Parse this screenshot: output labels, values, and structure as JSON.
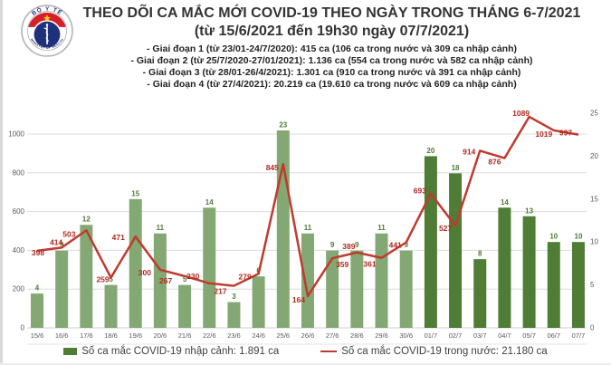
{
  "header": {
    "title_line1": "THEO DÕI CA MẮC MỚI COVID-19 THEO NGÀY TRONG THÁNG 6-7/2021",
    "title_line2": "(từ 15/6/2021 đến 19h30 ngày 07/7/2021)",
    "bullets": [
      "- Giai đoạn 1 (từ 23/01-24/7/2020): 415 ca (106 ca trong nước và 309 ca nhập cảnh)",
      "- Giai đoạn 2 (từ 25/7/2020-27/01/2021): 1.136 ca (554 ca trong nước và 582 ca nhập cảnh)",
      "- Giai đoạn 3 (từ 28/01-26/4/2021): 1.301 ca (910 ca trong nước và 391 ca nhập cảnh)",
      "- Giai đoạn 4 (từ 27/4/2021): 20.219 ca (19.610 ca trong nước và 609 ca nhập cảnh)"
    ]
  },
  "logo": {
    "top_text": "BỘ Y TẾ",
    "bottom_text": "MINISTRY OF HEALTH"
  },
  "legend": {
    "bars_label": "Số ca mắc COVID-19 nhập cảnh: 1.891 ca",
    "line_label": "Số ca mắc COVID-19 trong nước: 21.180 ca"
  },
  "chart_data": {
    "type": "bar",
    "subtype": "combo-bar-line-dual-axis",
    "categories": [
      "15/6",
      "16/6",
      "17/6",
      "18/6",
      "19/6",
      "20/6",
      "21/6",
      "22/6",
      "23/6",
      "24/6",
      "25/6",
      "26/6",
      "27/6",
      "28/6",
      "29/6",
      "30/6",
      "01/7",
      "02/7",
      "03/7",
      "04/7",
      "05/7",
      "06/7",
      "07/7"
    ],
    "series": [
      {
        "name": "Số ca mắc COVID-19 nhập cảnh",
        "type": "bar",
        "axis": "right",
        "values": [
          4,
          9,
          12,
          5,
          15,
          11,
          5,
          14,
          3,
          6,
          23,
          11,
          9,
          9,
          11,
          9,
          20,
          18,
          8,
          14,
          13,
          10,
          10
        ]
      },
      {
        "name": "Số ca mắc COVID-19 trong nước",
        "type": "line",
        "axis": "left",
        "values": [
          398,
          414,
          503,
          259,
          471,
          300,
          267,
          230,
          217,
          279,
          845,
          164,
          359,
          389,
          361,
          441,
          693,
          527,
          914,
          876,
          1089,
          1019,
          997
        ]
      }
    ],
    "left_axis": {
      "ticks": [
        0,
        200,
        400,
        600,
        800,
        1000
      ],
      "min": 0,
      "max": 1107
    },
    "right_axis": {
      "ticks": [
        0,
        5,
        10,
        15,
        20,
        25
      ],
      "min": 0,
      "max": 25
    },
    "grid": "horizontal",
    "legend_position": "bottom",
    "title": "THEO DÕI CA MẮC MỚI COVID-19 THEO NGÀY TRONG THÁNG 6-7/2021"
  },
  "colors": {
    "bar_june": "#84a873",
    "bar_july": "#4f7d35",
    "line": "#bf3a2e",
    "line_label": "#b02a20",
    "bar_label": "#4e7b31",
    "axis_text": "#595959",
    "grid": "#dcdcdc",
    "baseline": "#cfcfcf",
    "title_text": "#333333",
    "legend_text": "#404040",
    "logo_navy": "#20317c",
    "logo_red": "#d71f28",
    "logo_star": "#fcd116"
  }
}
